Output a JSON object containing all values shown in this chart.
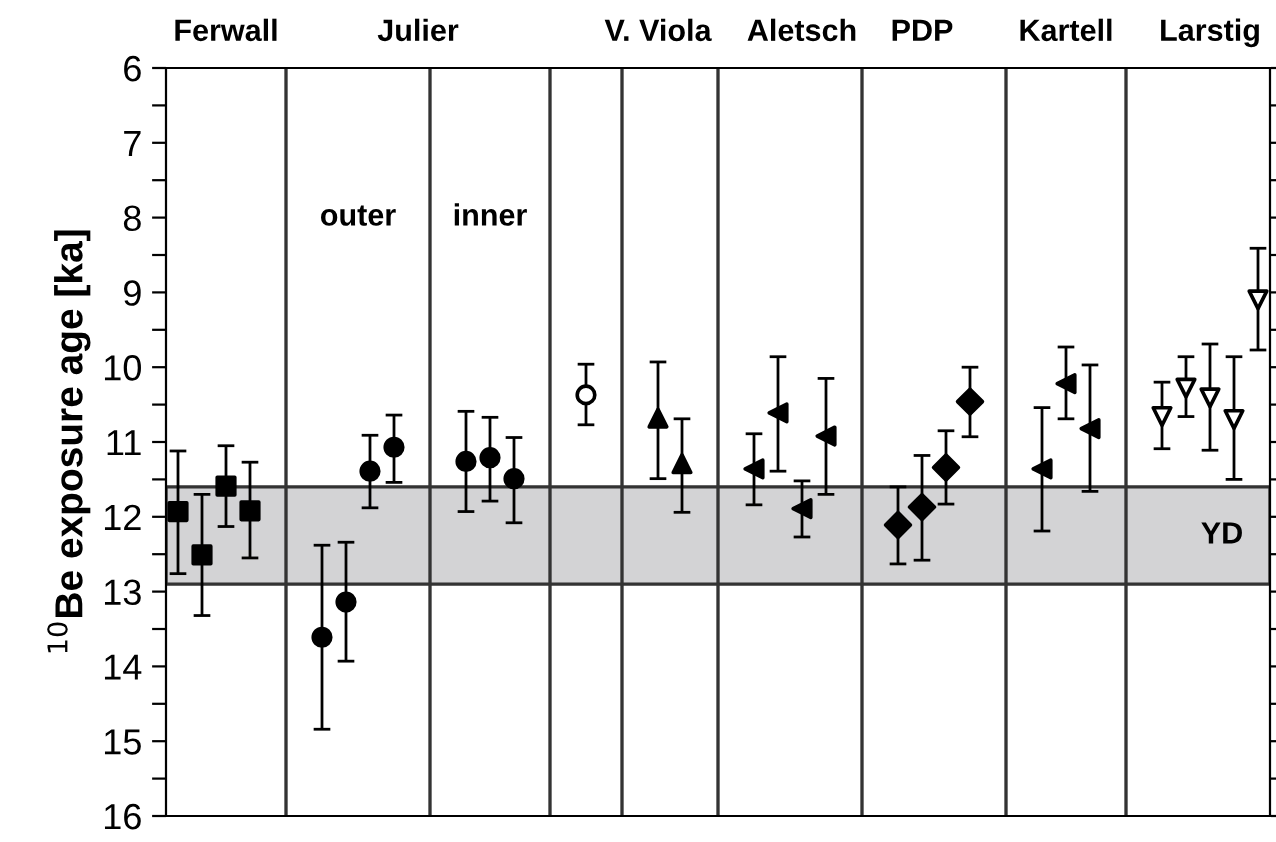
{
  "chart_data": {
    "type": "scatter",
    "ylabel": "$^{10}$Be exposure age [ka]",
    "categories": [
      null,
      null,
      "Ferwall",
      null,
      null,
      null,
      null,
      null,
      null,
      null,
      "Julier",
      null,
      null,
      null,
      null,
      null,
      null,
      null,
      null,
      null,
      "V. Viola",
      null,
      null,
      null,
      null,
      null,
      "Aletsch",
      null,
      null,
      null,
      null,
      "PDP",
      null,
      null,
      null,
      null,
      null,
      "Kartell",
      null,
      null,
      null,
      null,
      null,
      "Larstig",
      null,
      null
    ],
    "ylim": [
      16,
      6
    ],
    "yticks": [
      6,
      {
        "value": 6.5,
        "label": null
      },
      7,
      {
        "value": 7.5,
        "label": null
      },
      8,
      {
        "value": 8.5,
        "label": null
      },
      9,
      {
        "value": 9.5,
        "label": null
      },
      10,
      {
        "value": 10.5,
        "label": null
      },
      11,
      {
        "value": 11.5,
        "label": null
      },
      12,
      {
        "value": 12.5,
        "label": null
      },
      13,
      {
        "value": 13.5,
        "label": null
      },
      14,
      {
        "value": 14.5,
        "label": null
      },
      15,
      {
        "value": 15.5,
        "label": null
      },
      16
    ],
    "grid": false,
    "legend": false,
    "series": [
      {
        "color": "#000000",
        "marker": "square",
        "values": [
          11.93,
          12.51,
          11.59,
          11.92,
          null,
          null,
          null,
          null,
          null,
          null,
          null,
          null,
          null,
          null,
          null,
          null,
          null,
          null,
          null,
          null,
          null,
          null,
          null,
          null,
          null,
          null,
          null,
          null,
          null,
          null,
          null,
          null,
          null,
          null,
          null,
          null,
          null,
          null,
          null,
          null,
          null,
          null,
          null,
          null,
          null,
          null
        ],
        "errors": [
          [
            11.12,
            12.76
          ],
          [
            11.7,
            13.32
          ],
          [
            11.05,
            12.13
          ],
          [
            11.27,
            12.55
          ],
          null,
          null,
          null,
          null,
          null,
          null,
          null,
          null,
          null,
          null,
          null,
          null,
          null,
          null,
          null,
          null,
          null,
          null,
          null,
          null,
          null,
          null,
          null,
          null,
          null,
          null,
          null,
          null,
          null,
          null,
          null,
          null,
          null,
          null,
          null,
          null,
          null,
          null,
          null,
          null,
          null,
          null
        ]
      },
      {
        "color": "#000000",
        "marker": "circle",
        "values": [
          null,
          null,
          null,
          null,
          null,
          null,
          13.61,
          13.14,
          11.39,
          11.07,
          null,
          null,
          11.26,
          11.21,
          11.49,
          null,
          null,
          null,
          null,
          null,
          null,
          null,
          null,
          null,
          null,
          null,
          null,
          null,
          null,
          null,
          null,
          null,
          null,
          null,
          null,
          null,
          null,
          null,
          null,
          null,
          null,
          null,
          null,
          null,
          null,
          null
        ],
        "errors": [
          null,
          null,
          null,
          null,
          null,
          null,
          [
            12.38,
            14.84
          ],
          [
            12.34,
            13.93
          ],
          [
            10.91,
            11.88
          ],
          [
            10.64,
            11.54
          ],
          null,
          null,
          [
            10.59,
            11.93
          ],
          [
            10.67,
            11.79
          ],
          [
            10.94,
            12.08
          ],
          null,
          null,
          null,
          null,
          null,
          null,
          null,
          null,
          null,
          null,
          null,
          null,
          null,
          null,
          null,
          null,
          null,
          null,
          null,
          null,
          null,
          null,
          null,
          null,
          null,
          null,
          null,
          null,
          null,
          null,
          null
        ]
      },
      {
        "color": "#ffffff",
        "marker": "circle",
        "values": [
          null,
          null,
          null,
          null,
          null,
          null,
          null,
          null,
          null,
          null,
          null,
          null,
          null,
          null,
          null,
          null,
          null,
          10.37,
          null,
          null,
          null,
          null,
          null,
          null,
          null,
          null,
          null,
          null,
          null,
          null,
          null,
          null,
          null,
          null,
          null,
          null,
          null,
          null,
          null,
          null,
          null,
          null,
          null,
          null,
          null,
          null
        ],
        "errors": [
          null,
          null,
          null,
          null,
          null,
          null,
          null,
          null,
          null,
          null,
          null,
          null,
          null,
          null,
          null,
          null,
          null,
          [
            9.96,
            10.77
          ],
          null,
          null,
          null,
          null,
          null,
          null,
          null,
          null,
          null,
          null,
          null,
          null,
          null,
          null,
          null,
          null,
          null,
          null,
          null,
          null,
          null,
          null,
          null,
          null,
          null,
          null,
          null,
          null
        ]
      },
      {
        "color": "#000000",
        "marker": "triangle",
        "values": [
          null,
          null,
          null,
          null,
          null,
          null,
          null,
          null,
          null,
          null,
          null,
          null,
          null,
          null,
          null,
          null,
          null,
          null,
          null,
          null,
          10.68,
          11.29,
          null,
          null,
          null,
          null,
          null,
          null,
          null,
          null,
          null,
          null,
          null,
          null,
          null,
          null,
          null,
          null,
          null,
          null,
          null,
          null,
          null,
          null,
          null,
          null
        ],
        "errors": [
          null,
          null,
          null,
          null,
          null,
          null,
          null,
          null,
          null,
          null,
          null,
          null,
          null,
          null,
          null,
          null,
          null,
          null,
          null,
          null,
          [
            9.93,
            11.49
          ],
          [
            10.69,
            11.94
          ],
          null,
          null,
          null,
          null,
          null,
          null,
          null,
          null,
          null,
          null,
          null,
          null,
          null,
          null,
          null,
          null,
          null,
          null,
          null,
          null,
          null,
          null,
          null,
          null
        ]
      },
      {
        "color": "#000000",
        "marker": "triangle-left",
        "values": [
          null,
          null,
          null,
          null,
          null,
          null,
          null,
          null,
          null,
          null,
          null,
          null,
          null,
          null,
          null,
          null,
          null,
          null,
          null,
          null,
          null,
          null,
          null,
          null,
          11.36,
          10.61,
          11.89,
          10.92,
          null,
          null,
          null,
          null,
          null,
          null,
          null,
          null,
          null,
          null,
          null,
          null,
          null,
          null,
          null,
          null,
          null,
          null
        ],
        "errors": [
          null,
          null,
          null,
          null,
          null,
          null,
          null,
          null,
          null,
          null,
          null,
          null,
          null,
          null,
          null,
          null,
          null,
          null,
          null,
          null,
          null,
          null,
          null,
          null,
          [
            10.89,
            11.84
          ],
          [
            9.86,
            11.39
          ],
          [
            11.52,
            12.27
          ],
          [
            10.15,
            11.7
          ],
          null,
          null,
          null,
          null,
          null,
          null,
          null,
          null,
          null,
          null,
          null,
          null,
          null,
          null,
          null,
          null,
          null,
          null
        ]
      },
      {
        "color": "#000000",
        "marker": "diamond",
        "values": [
          null,
          null,
          null,
          null,
          null,
          null,
          null,
          null,
          null,
          null,
          null,
          null,
          null,
          null,
          null,
          null,
          null,
          null,
          null,
          null,
          null,
          null,
          null,
          null,
          null,
          null,
          null,
          null,
          null,
          null,
          12.11,
          11.87,
          11.34,
          10.46,
          null,
          null,
          null,
          null,
          null,
          null,
          null,
          null,
          null,
          null,
          null,
          null
        ],
        "errors": [
          null,
          null,
          null,
          null,
          null,
          null,
          null,
          null,
          null,
          null,
          null,
          null,
          null,
          null,
          null,
          null,
          null,
          null,
          null,
          null,
          null,
          null,
          null,
          null,
          null,
          null,
          null,
          null,
          null,
          null,
          [
            11.6,
            12.63
          ],
          [
            11.18,
            12.58
          ],
          [
            10.85,
            11.83
          ],
          [
            10.0,
            10.93
          ],
          null,
          null,
          null,
          null,
          null,
          null,
          null,
          null,
          null,
          null,
          null,
          null
        ]
      },
      {
        "color": "#000000",
        "marker": "triangle-left",
        "values": [
          null,
          null,
          null,
          null,
          null,
          null,
          null,
          null,
          null,
          null,
          null,
          null,
          null,
          null,
          null,
          null,
          null,
          null,
          null,
          null,
          null,
          null,
          null,
          null,
          null,
          null,
          null,
          null,
          null,
          null,
          null,
          null,
          null,
          null,
          null,
          null,
          11.36,
          10.22,
          10.82,
          null,
          null,
          null,
          null,
          null,
          null,
          null
        ],
        "errors": [
          null,
          null,
          null,
          null,
          null,
          null,
          null,
          null,
          null,
          null,
          null,
          null,
          null,
          null,
          null,
          null,
          null,
          null,
          null,
          null,
          null,
          null,
          null,
          null,
          null,
          null,
          null,
          null,
          null,
          null,
          null,
          null,
          null,
          null,
          null,
          null,
          [
            10.54,
            12.19
          ],
          [
            9.73,
            10.69
          ],
          [
            9.97,
            11.66
          ],
          null,
          null,
          null,
          null,
          null,
          null,
          null
        ]
      },
      {
        "color": "#ffffff",
        "marker": "triangle-down",
        "values": [
          null,
          null,
          null,
          null,
          null,
          null,
          null,
          null,
          null,
          null,
          null,
          null,
          null,
          null,
          null,
          null,
          null,
          null,
          null,
          null,
          null,
          null,
          null,
          null,
          null,
          null,
          null,
          null,
          null,
          null,
          null,
          null,
          null,
          null,
          null,
          null,
          null,
          null,
          null,
          null,
          null,
          10.66,
          10.28,
          10.41,
          10.7,
          9.1
        ],
        "errors": [
          null,
          null,
          null,
          null,
          null,
          null,
          null,
          null,
          null,
          null,
          null,
          null,
          null,
          null,
          null,
          null,
          null,
          null,
          null,
          null,
          null,
          null,
          null,
          null,
          null,
          null,
          null,
          null,
          null,
          null,
          null,
          null,
          null,
          null,
          null,
          null,
          null,
          null,
          null,
          null,
          null,
          [
            10.2,
            11.09
          ],
          [
            9.86,
            10.66
          ],
          [
            9.69,
            11.11
          ],
          [
            9.86,
            11.5
          ],
          [
            8.41,
            9.77
          ]
        ]
      }
    ],
    "bands": [
      {
        "axis": "y",
        "from": 11.6,
        "to": 12.9,
        "label": "YD",
        "color": "#d3d3d5"
      }
    ],
    "annotations": [
      "outer",
      "inner"
    ]
  }
}
